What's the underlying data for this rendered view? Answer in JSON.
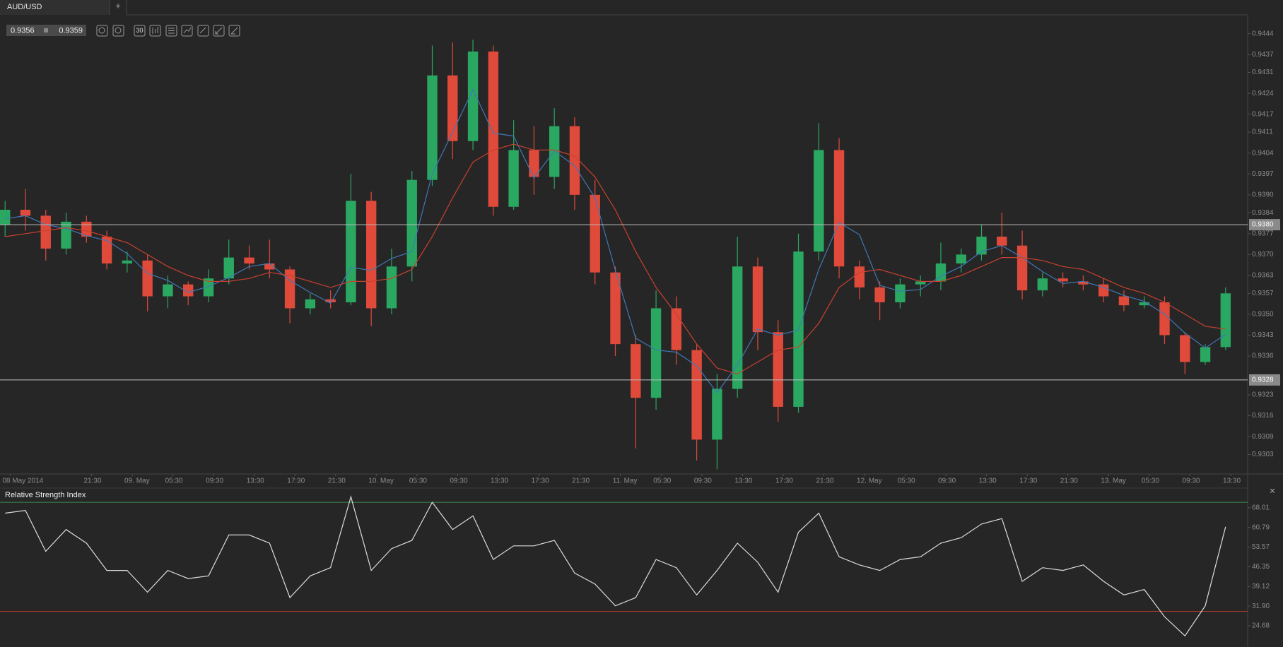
{
  "tabs": [
    "AUD/USD",
    "+"
  ],
  "quote": {
    "bid": 0.9356,
    "ask": 0.9359
  },
  "toolbar": {
    "period": "30"
  },
  "close_button": "×",
  "chart_data": [
    {
      "type": "candlestick",
      "x": [
        "2014-05-08T13:00",
        "2014-05-08T15:00",
        "2014-05-08T17:00",
        "2014-05-08T19:00",
        "2014-05-08T21:00",
        "2014-05-08T23:00",
        "2014-05-09T01:00",
        "2014-05-09T03:00",
        "2014-05-09T05:00",
        "2014-05-09T07:00",
        "2014-05-09T09:00",
        "2014-05-09T11:00",
        "2014-05-09T13:00",
        "2014-05-09T15:00",
        "2014-05-09T17:00",
        "2014-05-09T19:00",
        "2014-05-09T21:00",
        "2014-05-09T23:00",
        "2014-05-10T01:00",
        "2014-05-10T03:00",
        "2014-05-10T05:00",
        "2014-05-10T07:00",
        "2014-05-10T09:00",
        "2014-05-10T11:00",
        "2014-05-10T13:00",
        "2014-05-10T15:00",
        "2014-05-10T17:00",
        "2014-05-10T19:00",
        "2014-05-10T21:00",
        "2014-05-10T23:00",
        "2014-05-11T01:00",
        "2014-05-11T03:00",
        "2014-05-11T05:00",
        "2014-05-11T07:00",
        "2014-05-11T09:00",
        "2014-05-11T11:00",
        "2014-05-11T13:00",
        "2014-05-11T15:00",
        "2014-05-11T17:00",
        "2014-05-11T19:00",
        "2014-05-11T21:00",
        "2014-05-11T23:00",
        "2014-05-12T01:00",
        "2014-05-12T03:00",
        "2014-05-12T05:00",
        "2014-05-12T07:00",
        "2014-05-12T09:00",
        "2014-05-12T11:00",
        "2014-05-12T13:00",
        "2014-05-12T15:00",
        "2014-05-12T17:00",
        "2014-05-12T19:00",
        "2014-05-12T21:00",
        "2014-05-12T23:00",
        "2014-05-13T01:00",
        "2014-05-13T03:00",
        "2014-05-13T05:00",
        "2014-05-13T07:00",
        "2014-05-13T09:00",
        "2014-05-13T11:00",
        "2014-05-13T13:00"
      ],
      "open": [
        0.938,
        0.9385,
        0.9383,
        0.9372,
        0.9381,
        0.9376,
        0.9367,
        0.9368,
        0.9356,
        0.936,
        0.9356,
        0.9362,
        0.9369,
        0.9367,
        0.9365,
        0.9352,
        0.9355,
        0.9354,
        0.9388,
        0.9352,
        0.9366,
        0.9395,
        0.943,
        0.9408,
        0.9438,
        0.9386,
        0.9405,
        0.9396,
        0.9413,
        0.939,
        0.9364,
        0.934,
        0.9322,
        0.9352,
        0.9338,
        0.9308,
        0.9325,
        0.9366,
        0.9344,
        0.9319,
        0.9371,
        0.9405,
        0.9366,
        0.9359,
        0.9354,
        0.936,
        0.9361,
        0.9367,
        0.937,
        0.9376,
        0.9373,
        0.9358,
        0.9362,
        0.9361,
        0.936,
        0.9356,
        0.9353,
        0.9354,
        0.9343,
        0.9334,
        0.9339
      ],
      "high": [
        0.9388,
        0.9392,
        0.9385,
        0.9384,
        0.9383,
        0.9378,
        0.9371,
        0.937,
        0.9363,
        0.9361,
        0.9365,
        0.9375,
        0.9373,
        0.9375,
        0.9366,
        0.9357,
        0.9358,
        0.9397,
        0.9391,
        0.9372,
        0.9398,
        0.944,
        0.9441,
        0.9442,
        0.944,
        0.9415,
        0.9413,
        0.9419,
        0.9416,
        0.9395,
        0.9366,
        0.9343,
        0.9358,
        0.9356,
        0.934,
        0.933,
        0.9376,
        0.9369,
        0.9348,
        0.9377,
        0.9414,
        0.9409,
        0.9368,
        0.9361,
        0.9362,
        0.9363,
        0.9374,
        0.9372,
        0.938,
        0.9384,
        0.9378,
        0.9364,
        0.9364,
        0.9363,
        0.9362,
        0.9358,
        0.9356,
        0.9356,
        0.9344,
        0.934,
        0.9359
      ],
      "low": [
        0.9376,
        0.9378,
        0.9368,
        0.937,
        0.9374,
        0.9365,
        0.9364,
        0.9351,
        0.9352,
        0.9353,
        0.9354,
        0.936,
        0.9365,
        0.9362,
        0.9347,
        0.935,
        0.9352,
        0.9353,
        0.9346,
        0.935,
        0.9361,
        0.9393,
        0.9402,
        0.9405,
        0.9383,
        0.9385,
        0.939,
        0.9392,
        0.9385,
        0.936,
        0.9336,
        0.9305,
        0.9318,
        0.9333,
        0.9301,
        0.9298,
        0.9322,
        0.9338,
        0.9314,
        0.9317,
        0.9368,
        0.9362,
        0.9355,
        0.9348,
        0.9352,
        0.9356,
        0.9358,
        0.9364,
        0.9368,
        0.937,
        0.9355,
        0.9356,
        0.9359,
        0.9358,
        0.9354,
        0.9351,
        0.9352,
        0.934,
        0.933,
        0.9333,
        0.9338
      ],
      "close": [
        0.9385,
        0.9383,
        0.9372,
        0.9381,
        0.9376,
        0.9367,
        0.9368,
        0.9356,
        0.936,
        0.9356,
        0.9362,
        0.9369,
        0.9367,
        0.9365,
        0.9352,
        0.9355,
        0.9354,
        0.9388,
        0.9352,
        0.9366,
        0.9395,
        0.943,
        0.9408,
        0.9438,
        0.9386,
        0.9405,
        0.9396,
        0.9413,
        0.939,
        0.9364,
        0.934,
        0.9322,
        0.9352,
        0.9338,
        0.9308,
        0.9325,
        0.9366,
        0.9344,
        0.9319,
        0.9371,
        0.9405,
        0.9366,
        0.9359,
        0.9354,
        0.936,
        0.9361,
        0.9367,
        0.937,
        0.9376,
        0.9373,
        0.9358,
        0.9362,
        0.9361,
        0.936,
        0.9356,
        0.9353,
        0.9354,
        0.9343,
        0.9334,
        0.9339,
        0.9357
      ],
      "up_color": "#2aa862",
      "down_color": "#e04a3b",
      "series": [
        {
          "color": "#3f78b5",
          "values": [
            0.9382,
            0.9383,
            0.938,
            0.93787,
            0.93763,
            0.93747,
            0.93703,
            0.93637,
            0.93613,
            0.93573,
            0.93593,
            0.93623,
            0.9366,
            0.9367,
            0.93613,
            0.93573,
            0.93537,
            0.93657,
            0.93647,
            0.93687,
            0.9371,
            0.9397,
            0.9411,
            0.94253,
            0.94107,
            0.94097,
            0.93957,
            0.94047,
            0.93997,
            0.9389,
            0.93647,
            0.9342,
            0.9338,
            0.93373,
            0.93327,
            0.93237,
            0.9333,
            0.9345,
            0.9343,
            0.93447,
            0.9365,
            0.93807,
            0.93767,
            0.93597,
            0.93577,
            0.93583,
            0.93627,
            0.9366,
            0.9371,
            0.9373,
            0.9369,
            0.93643,
            0.93603,
            0.9361,
            0.9359,
            0.93563,
            0.93543,
            0.935,
            0.93437,
            0.93387,
            0.93433
          ]
        },
        {
          "color": "#c8412f",
          "values": [
            0.9376,
            0.9377,
            0.9378,
            0.9379,
            0.9378,
            0.9376,
            0.9374,
            0.937,
            0.9366,
            0.9363,
            0.9361,
            0.9361,
            0.9362,
            0.9364,
            0.9363,
            0.9361,
            0.9359,
            0.9361,
            0.9361,
            0.9362,
            0.9365,
            0.9376,
            0.9389,
            0.9401,
            0.9405,
            0.9407,
            0.9405,
            0.9405,
            0.9403,
            0.9396,
            0.9385,
            0.9371,
            0.9359,
            0.935,
            0.934,
            0.9332,
            0.933,
            0.9334,
            0.9338,
            0.9339,
            0.9347,
            0.9359,
            0.9364,
            0.9365,
            0.9363,
            0.9361,
            0.9361,
            0.9363,
            0.9366,
            0.9369,
            0.9369,
            0.9368,
            0.9366,
            0.9365,
            0.9362,
            0.9359,
            0.9357,
            0.9354,
            0.935,
            0.9346,
            0.9345
          ]
        }
      ],
      "hlines": [
        {
          "value": 0.938,
          "label": "0.9380"
        },
        {
          "value": 0.9328,
          "label": "0.9328"
        }
      ],
      "xlim": [
        "2014-05-08T12:30",
        "2014-05-13T15:10"
      ],
      "ylim": [
        0.92965,
        0.94503
      ],
      "xticks": [
        {
          "value": "2014-05-08T13:30",
          "label": "08 May 2014"
        },
        {
          "value": "2014-05-08T21:30",
          "label": "21:30"
        },
        {
          "value": "2014-05-09T01:30",
          "label": "09. May"
        },
        {
          "value": "2014-05-09T05:30",
          "label": "05:30"
        },
        {
          "value": "2014-05-09T09:30",
          "label": "09:30"
        },
        {
          "value": "2014-05-09T13:30",
          "label": "13:30"
        },
        {
          "value": "2014-05-09T17:30",
          "label": "17:30"
        },
        {
          "value": "2014-05-09T21:30",
          "label": "21:30"
        },
        {
          "value": "2014-05-10T01:30",
          "label": "10. May"
        },
        {
          "value": "2014-05-10T05:30",
          "label": "05:30"
        },
        {
          "value": "2014-05-10T09:30",
          "label": "09:30"
        },
        {
          "value": "2014-05-10T13:30",
          "label": "13:30"
        },
        {
          "value": "2014-05-10T17:30",
          "label": "17:30"
        },
        {
          "value": "2014-05-10T21:30",
          "label": "21:30"
        },
        {
          "value": "2014-05-11T01:30",
          "label": "11. May"
        },
        {
          "value": "2014-05-11T05:30",
          "label": "05:30"
        },
        {
          "value": "2014-05-11T09:30",
          "label": "09:30"
        },
        {
          "value": "2014-05-11T13:30",
          "label": "13:30"
        },
        {
          "value": "2014-05-11T17:30",
          "label": "17:30"
        },
        {
          "value": "2014-05-11T21:30",
          "label": "21:30"
        },
        {
          "value": "2014-05-12T01:30",
          "label": "12. May"
        },
        {
          "value": "2014-05-12T05:30",
          "label": "05:30"
        },
        {
          "value": "2014-05-12T09:30",
          "label": "09:30"
        },
        {
          "value": "2014-05-12T13:30",
          "label": "13:30"
        },
        {
          "value": "2014-05-12T17:30",
          "label": "17:30"
        },
        {
          "value": "2014-05-12T21:30",
          "label": "21:30"
        },
        {
          "value": "2014-05-13T01:30",
          "label": "13. May"
        },
        {
          "value": "2014-05-13T05:30",
          "label": "05:30"
        },
        {
          "value": "2014-05-13T09:30",
          "label": "09:30"
        },
        {
          "value": "2014-05-13T13:30",
          "label": "13:30"
        }
      ],
      "yticks": [
        0.9444,
        0.9437,
        0.9431,
        0.9424,
        0.9417,
        0.9411,
        0.9404,
        0.9397,
        {
          "value": 0.939,
          "label": "0.9390"
        },
        0.9384,
        0.9377,
        {
          "value": 0.937,
          "label": "0.9370"
        },
        0.9363,
        0.9357,
        {
          "value": 0.935,
          "label": "0.9350"
        },
        0.9343,
        0.9336,
        0.9323,
        0.9316,
        0.9309,
        0.9303
      ]
    },
    {
      "type": "line",
      "title": "Relative Strength Index",
      "color": "#dcdcdc",
      "values": [
        66,
        67,
        52,
        60,
        55,
        45,
        45,
        37,
        45,
        42,
        43,
        58,
        58,
        55,
        35,
        43,
        46,
        72,
        45,
        53,
        56,
        70,
        60,
        65,
        49,
        54,
        54,
        56,
        44,
        40,
        32,
        35,
        49,
        46,
        36,
        45,
        55,
        48,
        37,
        59,
        66,
        50,
        47,
        45,
        49,
        50,
        55,
        57,
        62,
        64,
        41,
        46,
        45,
        47,
        41,
        36,
        38,
        28,
        21,
        32,
        61
      ],
      "levels": [
        {
          "value": 70,
          "color": "#3f8a4a"
        },
        {
          "value": 30,
          "color": "#b23a30"
        }
      ],
      "ylim": [
        16.9,
        75.2
      ],
      "yticks": [
        68.01,
        60.79,
        53.57,
        46.35,
        39.12,
        {
          "value": 31.9,
          "label": "31.90"
        },
        24.68
      ]
    }
  ]
}
